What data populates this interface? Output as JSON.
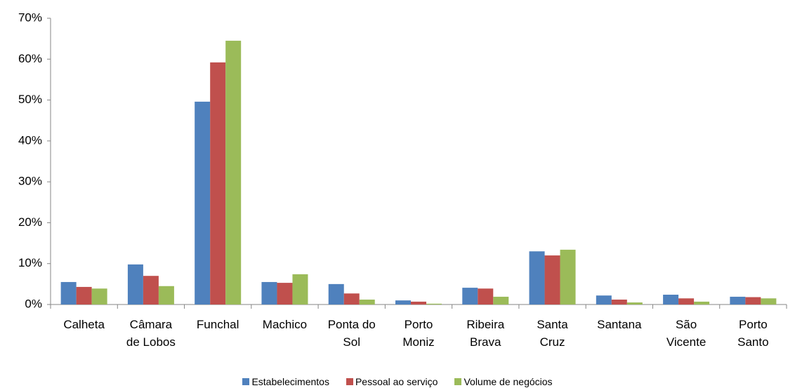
{
  "chart_data": {
    "type": "bar",
    "categories": [
      "Calheta",
      "Câmara de Lobos",
      "Funchal",
      "Machico",
      "Ponta do Sol",
      "Porto Moniz",
      "Ribeira Brava",
      "Santa Cruz",
      "Santana",
      "São Vicente",
      "Porto Santo"
    ],
    "series": [
      {
        "name": "Estabelecimentos",
        "color": "#4f81bd",
        "values": [
          5.5,
          9.8,
          49.6,
          5.5,
          5.0,
          1.0,
          4.1,
          13.0,
          2.2,
          2.4,
          1.9
        ]
      },
      {
        "name": "Pessoal ao serviço",
        "color": "#c0504d",
        "values": [
          4.3,
          7.0,
          59.2,
          5.3,
          2.7,
          0.7,
          3.9,
          12.0,
          1.2,
          1.5,
          1.8
        ]
      },
      {
        "name": "Volume de negócios",
        "color": "#9bbb59",
        "values": [
          3.9,
          4.5,
          64.5,
          7.4,
          1.2,
          0.2,
          1.9,
          13.4,
          0.5,
          0.7,
          1.5
        ]
      }
    ],
    "ylim": [
      0,
      70
    ],
    "yticks": [
      {
        "value": 0,
        "label": "0%"
      },
      {
        "value": 10,
        "label": "10%"
      },
      {
        "value": 20,
        "label": "20%"
      },
      {
        "value": 30,
        "label": "30%"
      },
      {
        "value": 40,
        "label": "40%"
      },
      {
        "value": 50,
        "label": "50%"
      },
      {
        "value": 60,
        "label": "60%"
      },
      {
        "value": 70,
        "label": "70%"
      }
    ],
    "grid": false,
    "legend": "bottom"
  }
}
